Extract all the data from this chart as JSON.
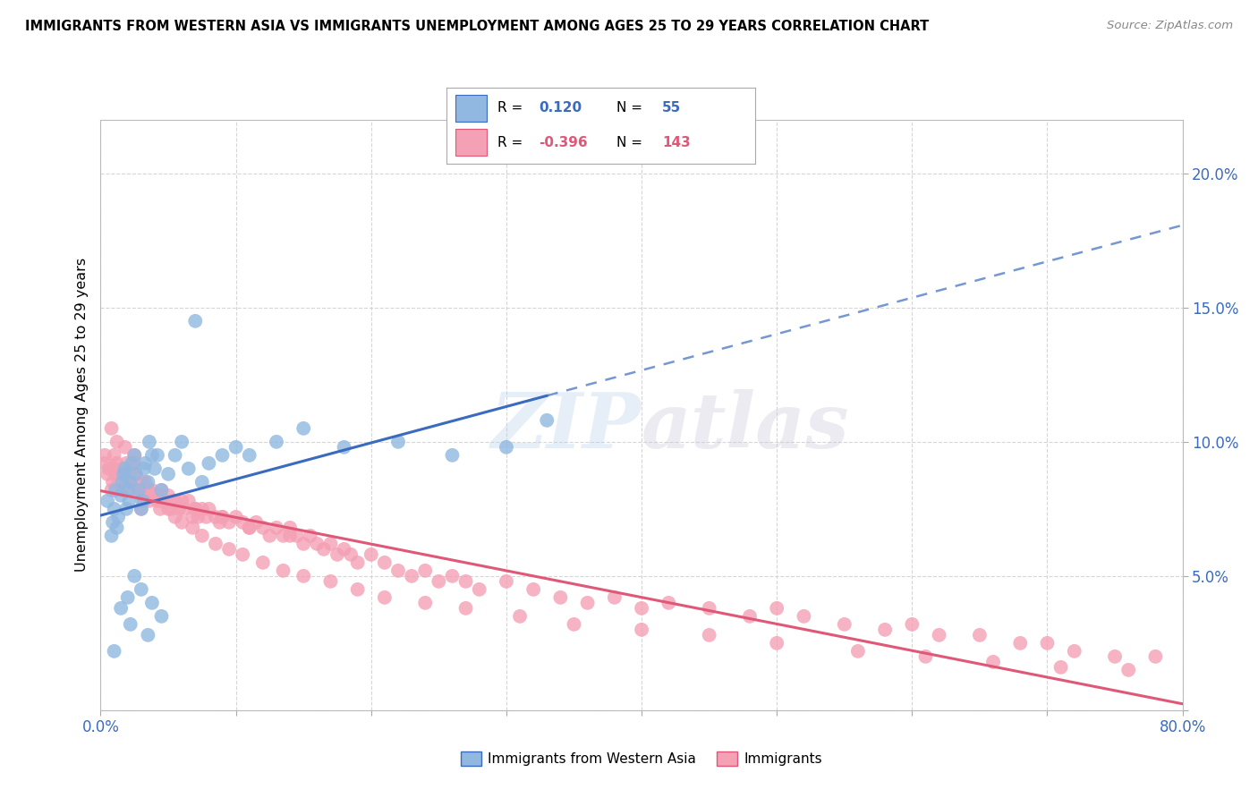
{
  "title": "IMMIGRANTS FROM WESTERN ASIA VS IMMIGRANTS UNEMPLOYMENT AMONG AGES 25 TO 29 YEARS CORRELATION CHART",
  "source": "Source: ZipAtlas.com",
  "ylabel": "Unemployment Among Ages 25 to 29 years",
  "xlim": [
    0.0,
    0.8
  ],
  "ylim": [
    0.0,
    0.22
  ],
  "R1": 0.12,
  "N1": 55,
  "R2": -0.396,
  "N2": 143,
  "color_blue": "#90B8E0",
  "color_pink": "#F4A0B5",
  "color_blue_line": "#3A6BBF",
  "color_pink_line": "#E05878",
  "color_blue_text": "#3A6BBF",
  "color_pink_text": "#E05878",
  "legend1_label": "Immigrants from Western Asia",
  "legend2_label": "Immigrants",
  "blue_x": [
    0.005,
    0.008,
    0.009,
    0.01,
    0.011,
    0.012,
    0.013,
    0.015,
    0.016,
    0.017,
    0.018,
    0.019,
    0.02,
    0.021,
    0.022,
    0.023,
    0.025,
    0.026,
    0.028,
    0.03,
    0.031,
    0.032,
    0.033,
    0.035,
    0.036,
    0.038,
    0.04,
    0.042,
    0.045,
    0.05,
    0.055,
    0.06,
    0.065,
    0.07,
    0.075,
    0.08,
    0.09,
    0.1,
    0.11,
    0.13,
    0.15,
    0.18,
    0.22,
    0.26,
    0.3,
    0.33,
    0.025,
    0.03,
    0.02,
    0.015,
    0.01,
    0.038,
    0.045,
    0.022,
    0.035
  ],
  "blue_y": [
    0.078,
    0.065,
    0.07,
    0.075,
    0.082,
    0.068,
    0.072,
    0.08,
    0.085,
    0.088,
    0.09,
    0.075,
    0.082,
    0.078,
    0.085,
    0.092,
    0.095,
    0.088,
    0.082,
    0.075,
    0.078,
    0.09,
    0.092,
    0.085,
    0.1,
    0.095,
    0.09,
    0.095,
    0.082,
    0.088,
    0.095,
    0.1,
    0.09,
    0.145,
    0.085,
    0.092,
    0.095,
    0.098,
    0.095,
    0.1,
    0.105,
    0.098,
    0.1,
    0.095,
    0.098,
    0.108,
    0.05,
    0.045,
    0.042,
    0.038,
    0.022,
    0.04,
    0.035,
    0.032,
    0.028
  ],
  "pink_x": [
    0.003,
    0.005,
    0.006,
    0.008,
    0.009,
    0.01,
    0.011,
    0.012,
    0.013,
    0.015,
    0.016,
    0.017,
    0.018,
    0.019,
    0.02,
    0.021,
    0.022,
    0.023,
    0.025,
    0.026,
    0.028,
    0.03,
    0.031,
    0.032,
    0.033,
    0.035,
    0.036,
    0.038,
    0.04,
    0.042,
    0.044,
    0.045,
    0.048,
    0.05,
    0.052,
    0.055,
    0.058,
    0.06,
    0.062,
    0.065,
    0.068,
    0.07,
    0.072,
    0.075,
    0.078,
    0.08,
    0.085,
    0.088,
    0.09,
    0.095,
    0.1,
    0.105,
    0.11,
    0.115,
    0.12,
    0.125,
    0.13,
    0.135,
    0.14,
    0.145,
    0.15,
    0.155,
    0.16,
    0.165,
    0.17,
    0.175,
    0.18,
    0.185,
    0.19,
    0.2,
    0.21,
    0.22,
    0.23,
    0.24,
    0.25,
    0.26,
    0.27,
    0.28,
    0.3,
    0.32,
    0.34,
    0.36,
    0.38,
    0.4,
    0.42,
    0.45,
    0.48,
    0.5,
    0.52,
    0.55,
    0.58,
    0.6,
    0.62,
    0.65,
    0.68,
    0.7,
    0.72,
    0.75,
    0.78,
    0.008,
    0.012,
    0.018,
    0.025,
    0.03,
    0.035,
    0.04,
    0.045,
    0.05,
    0.055,
    0.06,
    0.068,
    0.075,
    0.085,
    0.095,
    0.105,
    0.12,
    0.135,
    0.15,
    0.17,
    0.19,
    0.21,
    0.24,
    0.27,
    0.31,
    0.35,
    0.4,
    0.45,
    0.5,
    0.56,
    0.61,
    0.66,
    0.71,
    0.76,
    0.003,
    0.01,
    0.02,
    0.03,
    0.042,
    0.055,
    0.07,
    0.09,
    0.11,
    0.14
  ],
  "pink_y": [
    0.092,
    0.088,
    0.09,
    0.082,
    0.085,
    0.095,
    0.088,
    0.092,
    0.085,
    0.09,
    0.082,
    0.088,
    0.085,
    0.092,
    0.088,
    0.082,
    0.085,
    0.09,
    0.095,
    0.088,
    0.082,
    0.075,
    0.08,
    0.078,
    0.085,
    0.082,
    0.078,
    0.082,
    0.08,
    0.078,
    0.075,
    0.082,
    0.078,
    0.08,
    0.075,
    0.078,
    0.075,
    0.078,
    0.075,
    0.078,
    0.072,
    0.075,
    0.072,
    0.075,
    0.072,
    0.075,
    0.072,
    0.07,
    0.072,
    0.07,
    0.072,
    0.07,
    0.068,
    0.07,
    0.068,
    0.065,
    0.068,
    0.065,
    0.068,
    0.065,
    0.062,
    0.065,
    0.062,
    0.06,
    0.062,
    0.058,
    0.06,
    0.058,
    0.055,
    0.058,
    0.055,
    0.052,
    0.05,
    0.052,
    0.048,
    0.05,
    0.048,
    0.045,
    0.048,
    0.045,
    0.042,
    0.04,
    0.042,
    0.038,
    0.04,
    0.038,
    0.035,
    0.038,
    0.035,
    0.032,
    0.03,
    0.032,
    0.028,
    0.028,
    0.025,
    0.025,
    0.022,
    0.02,
    0.02,
    0.105,
    0.1,
    0.098,
    0.092,
    0.085,
    0.082,
    0.08,
    0.078,
    0.075,
    0.072,
    0.07,
    0.068,
    0.065,
    0.062,
    0.06,
    0.058,
    0.055,
    0.052,
    0.05,
    0.048,
    0.045,
    0.042,
    0.04,
    0.038,
    0.035,
    0.032,
    0.03,
    0.028,
    0.025,
    0.022,
    0.02,
    0.018,
    0.016,
    0.015,
    0.095,
    0.09,
    0.085,
    0.082,
    0.08,
    0.078,
    0.075,
    0.072,
    0.068,
    0.065
  ]
}
